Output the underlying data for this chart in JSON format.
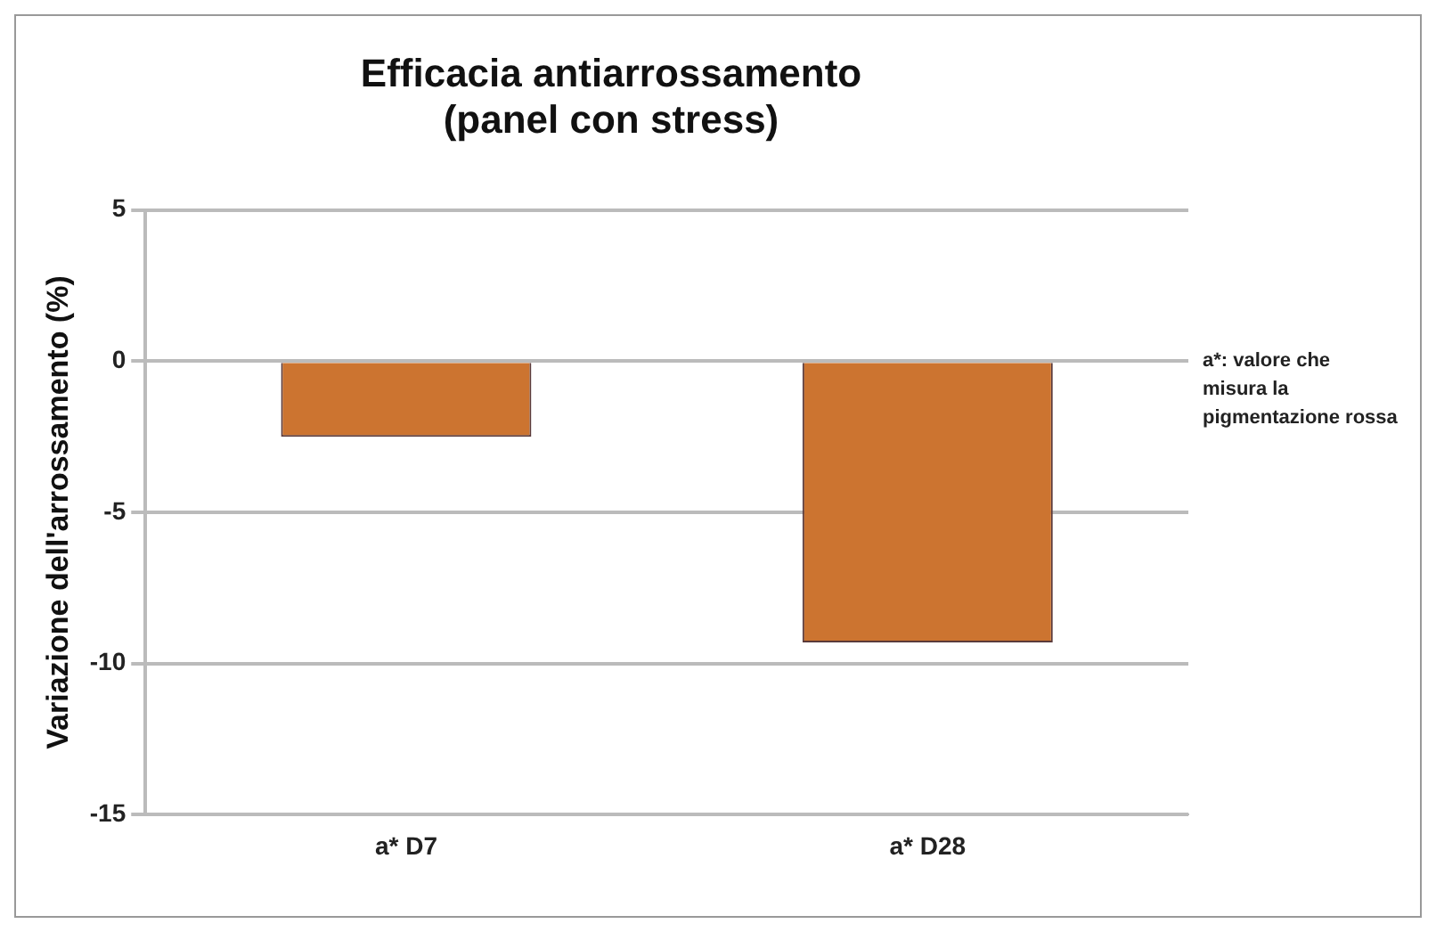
{
  "chart_data": {
    "type": "bar",
    "title": [
      "Efficacia antiarrossamento",
      "(panel con stress)"
    ],
    "ylabel": "Variazione dell'arrossamento (%)",
    "categories": [
      "a* D7",
      "a* D28"
    ],
    "series": [
      {
        "color": "#cc7430",
        "values": [
          -2.5,
          -9.3
        ]
      }
    ],
    "ylim": [
      -15,
      5
    ],
    "yticks": [
      -15,
      -10,
      -5,
      0,
      5
    ],
    "grid": "y",
    "legend": false,
    "annotations": [
      "a*: valore che misura la pigmentazione rossa"
    ]
  }
}
